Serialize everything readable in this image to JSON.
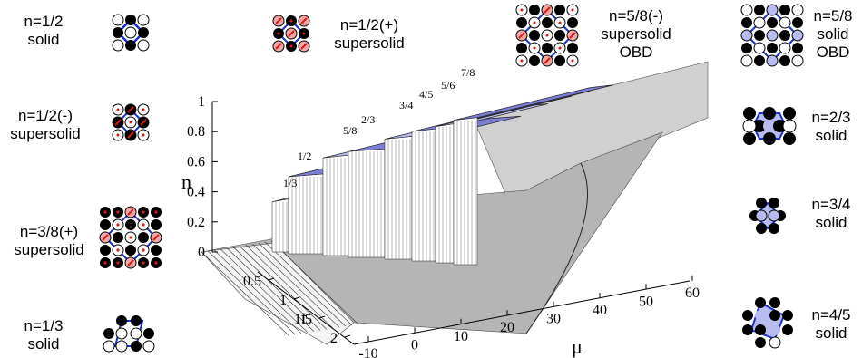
{
  "left_panels": [
    {
      "label_line1": "n=1/2",
      "label_line2": "solid"
    },
    {
      "label_line1": "n=1/2(-)",
      "label_line2": "supersolid"
    },
    {
      "label_line1": "n=3/8(+)",
      "label_line2": "supersolid"
    },
    {
      "label_line1": "n=1/3",
      "label_line2": "solid"
    }
  ],
  "top_panels": [
    {
      "label_line1": "n=1/2(+)",
      "label_line2": "supersolid",
      "label_line3": ""
    },
    {
      "label_line1": "n=5/8(-)",
      "label_line2": "supersolid",
      "label_line3": "OBD"
    },
    {
      "label_line1": "n=5/8",
      "label_line2": "solid",
      "label_line3": "OBD"
    }
  ],
  "right_panels": [
    {
      "label_line1": "n=2/3",
      "label_line2": "solid"
    },
    {
      "label_line1": "n=3/4",
      "label_line2": "solid"
    },
    {
      "label_line1": "n=4/5",
      "label_line2": "solid"
    }
  ],
  "plot": {
    "z_axis_label": "n",
    "z_ticks": [
      "1",
      "0.8",
      "0.6",
      "0.4",
      "0.2",
      "0"
    ],
    "t_axis_label": "t",
    "t_ticks": [
      "0.5",
      "1",
      "1.5",
      "2"
    ],
    "mu_axis_label": "μ",
    "mu_ticks": [
      "-10",
      "0",
      "10",
      "20",
      "30",
      "40",
      "50",
      "60"
    ],
    "plateau_labels": [
      "1/3",
      "1/2",
      "5/8",
      "2/3",
      "3/4",
      "4/5",
      "5/6",
      "7/8"
    ]
  },
  "colors": {
    "plateau_fill": "#7b7fd6",
    "plateau_light": "#b8bcf0",
    "surface_grey": "#b5b5b5",
    "lattice_blue": "#1a2fd1",
    "solid_black": "#000000",
    "arrow_red": "#e01818"
  }
}
